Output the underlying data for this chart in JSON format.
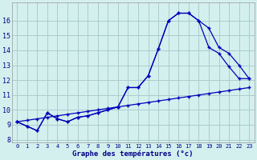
{
  "background_color": "#d4f0ee",
  "grid_color": "#aacccc",
  "line_color": "#0000bb",
  "hours": [
    0,
    1,
    2,
    3,
    4,
    5,
    6,
    7,
    8,
    9,
    10,
    11,
    12,
    13,
    14,
    15,
    16,
    17,
    18,
    19,
    20,
    21,
    22,
    23
  ],
  "curve1": [
    9.2,
    8.9,
    8.6,
    9.8,
    9.4,
    9.2,
    9.5,
    9.6,
    9.8,
    10.0,
    10.2,
    11.5,
    11.5,
    12.3,
    14.1,
    16.0,
    16.5,
    16.5,
    16.0,
    15.5,
    14.2,
    13.8,
    13.0,
    12.1
  ],
  "curve2": [
    9.2,
    8.9,
    8.6,
    9.8,
    9.4,
    9.2,
    9.5,
    9.6,
    9.8,
    10.0,
    10.2,
    11.5,
    11.5,
    12.3,
    14.1,
    16.0,
    16.5,
    16.5,
    16.0,
    14.2,
    13.8,
    12.9,
    12.1,
    12.1
  ],
  "curve3": [
    9.2,
    9.3,
    9.4,
    9.5,
    9.6,
    9.7,
    9.8,
    9.9,
    10.0,
    10.1,
    10.2,
    10.3,
    10.4,
    10.5,
    10.6,
    10.7,
    10.8,
    10.9,
    11.0,
    11.1,
    11.2,
    11.3,
    11.4,
    11.5
  ],
  "xlabel": "Graphe des températures (°c)",
  "ylim_min": 7.8,
  "ylim_max": 17.2,
  "yticks": [
    8,
    9,
    10,
    11,
    12,
    13,
    14,
    15,
    16
  ]
}
